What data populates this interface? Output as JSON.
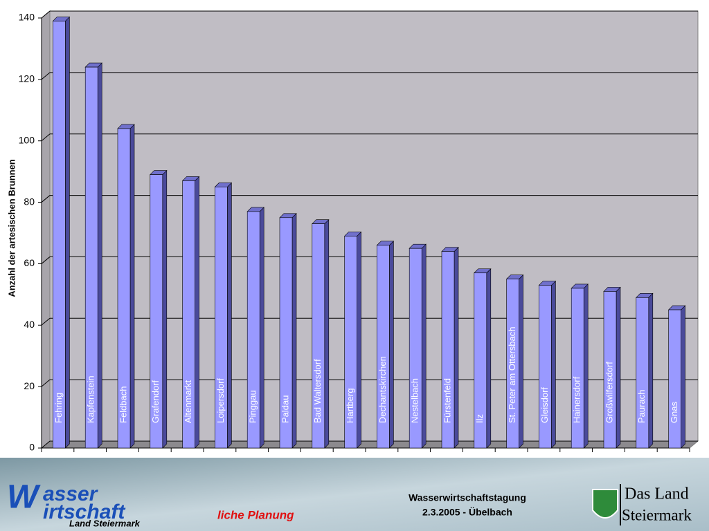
{
  "chart_data": {
    "type": "bar",
    "ylabel": "Anzahl der artesischen Brunnen",
    "categories": [
      "Fehring",
      "Kapfenstein",
      "Feldbach",
      "Grafendorf",
      "Altenmarkt",
      "Loipersdorf",
      "Pinggau",
      "Paldau",
      "Bad Waltersdorf",
      "Hartberg",
      "Dechantskirchen",
      "Nestelbach",
      "Fürstenfeld",
      "Ilz",
      "St. Peter am Ottersbach",
      "Gleisdorf",
      "Hainersdorf",
      "Großwilfersdorf",
      "Paurach",
      "Gnas"
    ],
    "values": [
      139,
      124,
      104,
      89,
      87,
      85,
      77,
      75,
      73,
      69,
      66,
      65,
      64,
      57,
      55,
      53,
      52,
      51,
      49,
      45
    ],
    "color": "#9999ff",
    "ylim": [
      0,
      140
    ],
    "yticks": [
      0,
      20,
      40,
      60,
      80,
      100,
      120,
      140
    ],
    "grid": true
  },
  "footer": {
    "logo": [
      "asser",
      "irtschaft",
      "liche Planung",
      "Land Steiermark"
    ],
    "event": "Wasserwirtschaftstagung",
    "date": "2.3.2005 - Übelbach",
    "state": [
      "Das Land",
      "Steiermark"
    ]
  }
}
